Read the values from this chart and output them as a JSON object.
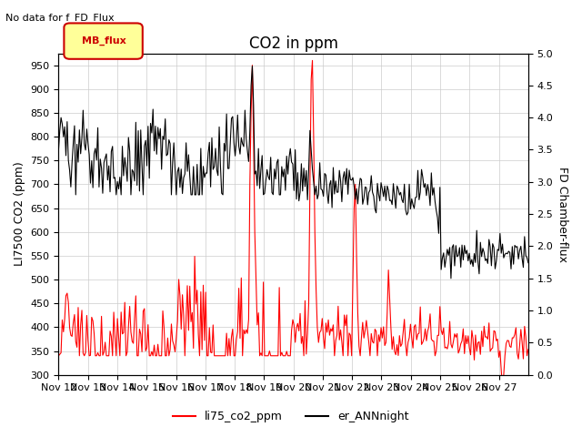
{
  "title": "CO2 in ppm",
  "top_note": "No data for f_FD_Flux",
  "ylabel_left": "LI7500 CO2 (ppm)",
  "ylabel_right": "FD Chamber-flux",
  "ylim_left": [
    300,
    975
  ],
  "ylim_right": [
    0.0,
    5.0
  ],
  "yticks_left": [
    300,
    350,
    400,
    450,
    500,
    550,
    600,
    650,
    700,
    750,
    800,
    850,
    900,
    950
  ],
  "yticks_right": [
    0.0,
    0.5,
    1.0,
    1.5,
    2.0,
    2.5,
    3.0,
    3.5,
    4.0,
    4.5,
    5.0
  ],
  "xtick_labels": [
    "Nov 12",
    "Nov 13",
    "Nov 14",
    "Nov 15",
    "Nov 16",
    "Nov 17",
    "Nov 18",
    "Nov 19",
    "Nov 20",
    "Nov 21",
    "Nov 22",
    "Nov 23",
    "Nov 24",
    "Nov 25",
    "Nov 26",
    "Nov 27"
  ],
  "line1_color": "#ff0000",
  "line1_label": "li75_co2_ppm",
  "line2_color": "#000000",
  "line2_label": "er_ANNnight",
  "legend_box_color": "#ffff99",
  "legend_box_edge": "#cc0000",
  "legend_box_text": "MB_flux",
  "background_color": "#ffffff",
  "grid_color": "#cccccc",
  "title_fontsize": 12,
  "label_fontsize": 9,
  "tick_fontsize": 8
}
